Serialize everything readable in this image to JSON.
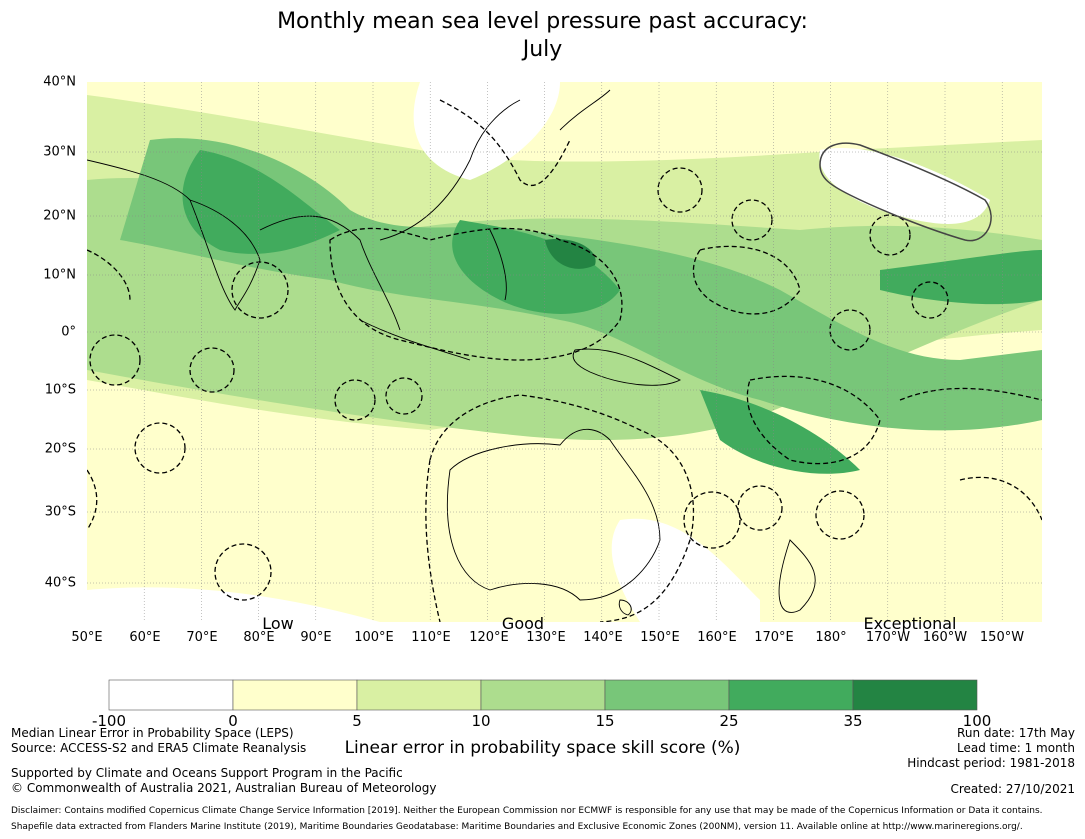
{
  "title_line1": "Monthly mean sea level pressure past accuracy:",
  "title_line2": "July",
  "categories": [
    "Low",
    "Good",
    "Exceptional"
  ],
  "lat_labels": [
    "40°N",
    "30°N",
    "20°N",
    "10°N",
    "0°",
    "10°S",
    "20°S",
    "30°S",
    "40°S"
  ],
  "lon_labels": [
    "50°E",
    "60°E",
    "70°E",
    "80°E",
    "90°E",
    "100°E",
    "110°E",
    "120°E",
    "130°E",
    "140°E",
    "150°E",
    "160°E",
    "170°E",
    "180°",
    "170°W",
    "160°W",
    "150°W"
  ],
  "colorbar": {
    "ticks": [
      "-100",
      "0",
      "5",
      "10",
      "15",
      "25",
      "35",
      "100"
    ],
    "colors": [
      "#ffffff",
      "#ffffcc",
      "#d9f0a3",
      "#addd8e",
      "#78c679",
      "#41ab5d",
      "#238443"
    ],
    "title": "Linear error in probability space skill score (%)"
  },
  "footer": {
    "line1": "Median Linear Error in Probability Space (LEPS)",
    "line2": "Source: ACCESS-S2 and ERA5 Climate Reanalysis",
    "line3": "Supported by Climate and Oceans Support Program in the Pacific",
    "line4": "© Commonwealth of Australia 2021, Australian Bureau of Meteorology",
    "run_date": "Run date: 17th May",
    "lead_time": "Lead time: 1 month",
    "hindcast": "Hindcast period: 1981-2018",
    "created": "Created: 27/10/2021",
    "disclaimer1": "Disclaimer: Contains modified Copernicus Climate Change Service Information [2019]. Neither the European Commission nor ECMWF is responsible for any use that may be made of the Copernicus Information or Data it contains.",
    "disclaimer2": "Shapefile data extracted from Flanders Marine Institute (2019), Maritime Boundaries Geodatabase: Maritime Boundaries and Exclusive Economic Zones (200NM), version 11. Available online at http://www.marineregions.org/."
  }
}
